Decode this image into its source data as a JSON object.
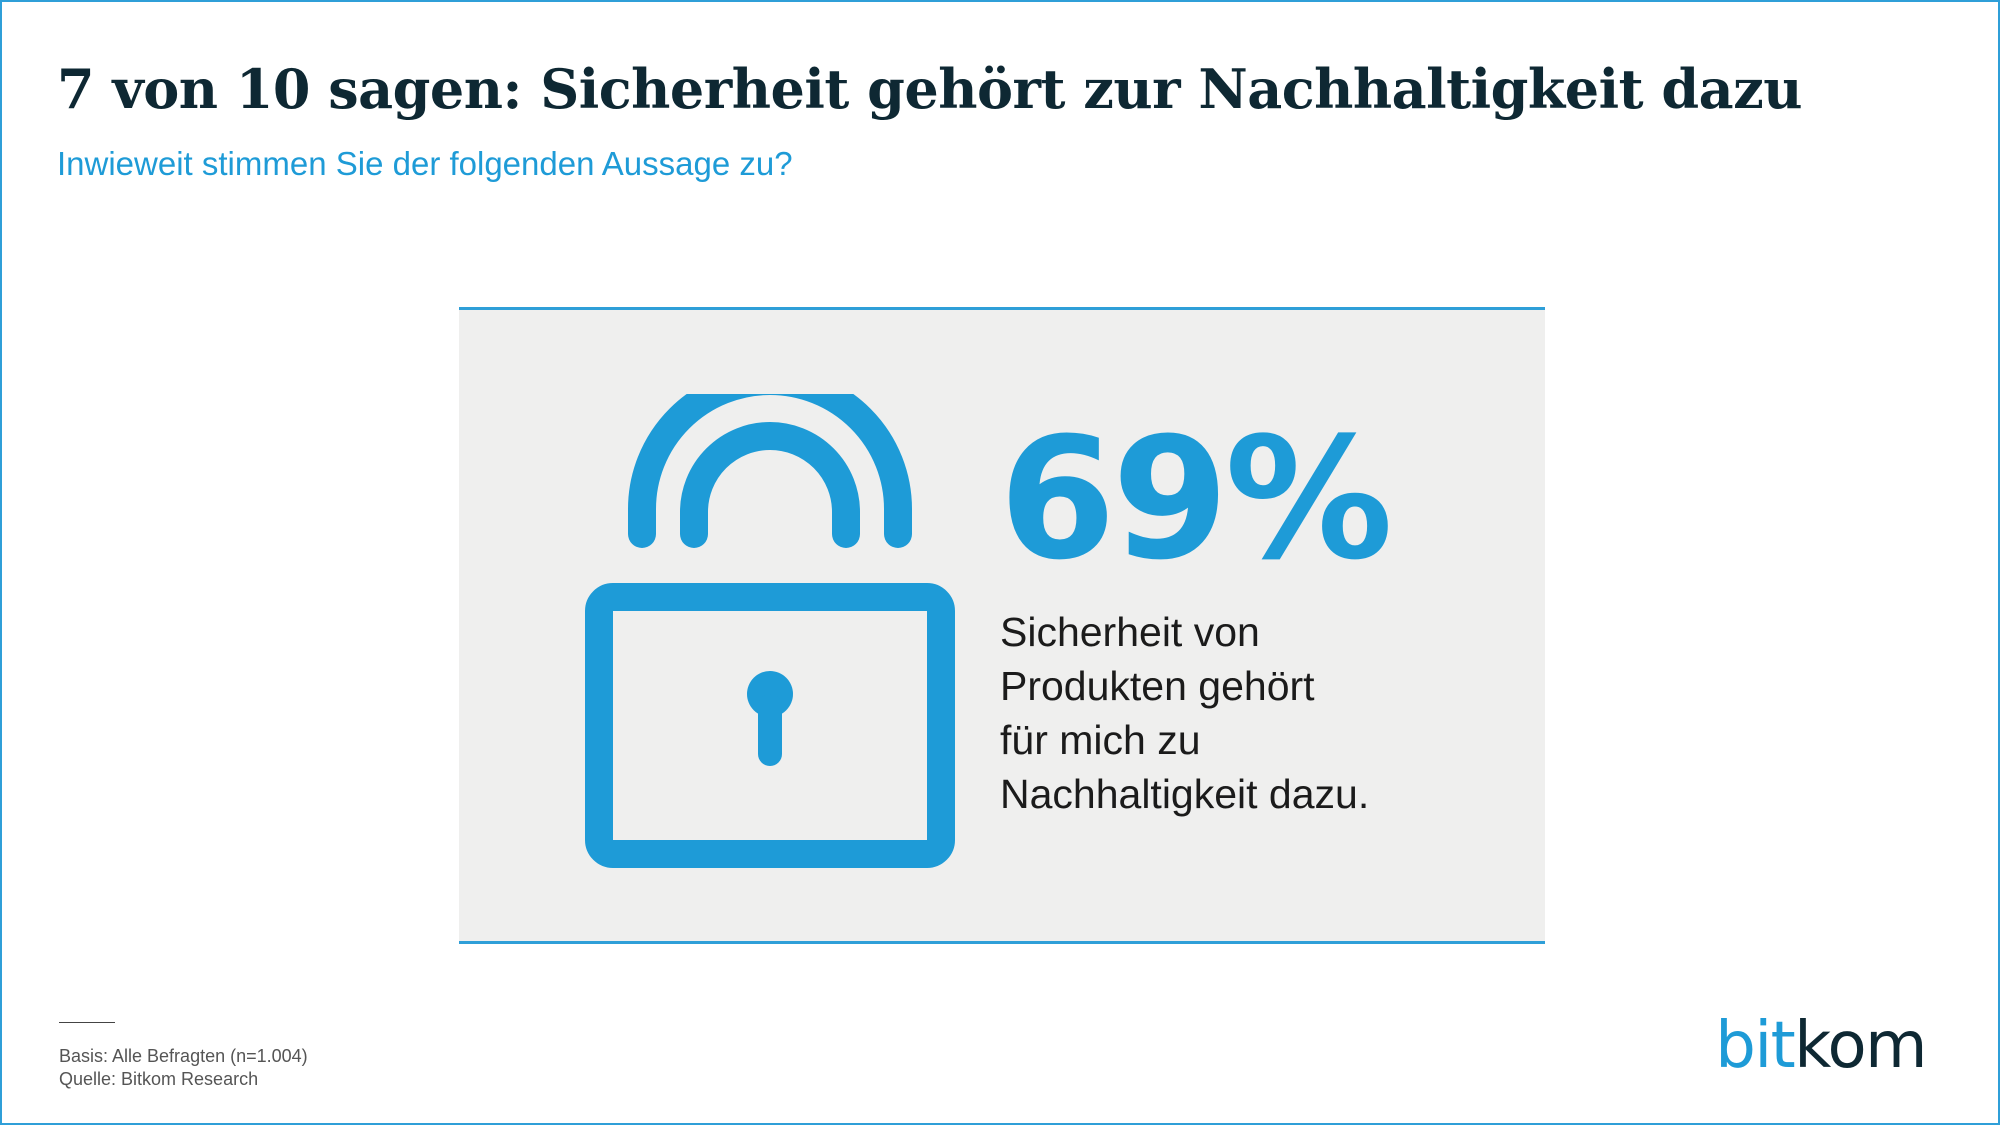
{
  "header": {
    "title": "7 von 10 sagen: Sicherheit gehört zur Nachhaltigkeit dazu",
    "subtitle": "Inwieweit stimmen Sie der folgenden Aussage zu?"
  },
  "chart_data": {
    "type": "table",
    "title": "7 von 10 sagen: Sicherheit gehört zur Nachhaltigkeit dazu",
    "subtitle": "Inwieweit stimmen Sie der folgenden Aussage zu?",
    "value": 69,
    "value_label": "69%",
    "statement_lines": [
      "Sicherheit von",
      "Produkten gehört",
      "für mich zu",
      "Nachhaltigkeit dazu."
    ],
    "icon": "padlock-icon"
  },
  "footnote": {
    "basis": "Basis: Alle Befragten (n=1.004)",
    "source": "Quelle: Bitkom Research"
  },
  "logo": {
    "part1": "bit",
    "part2": "kom",
    "color1": "#1e9bd7",
    "color2": "#0e2833"
  },
  "colors": {
    "accent": "#1e9bd7",
    "panel": "#efefee",
    "title": "#0e2833"
  }
}
